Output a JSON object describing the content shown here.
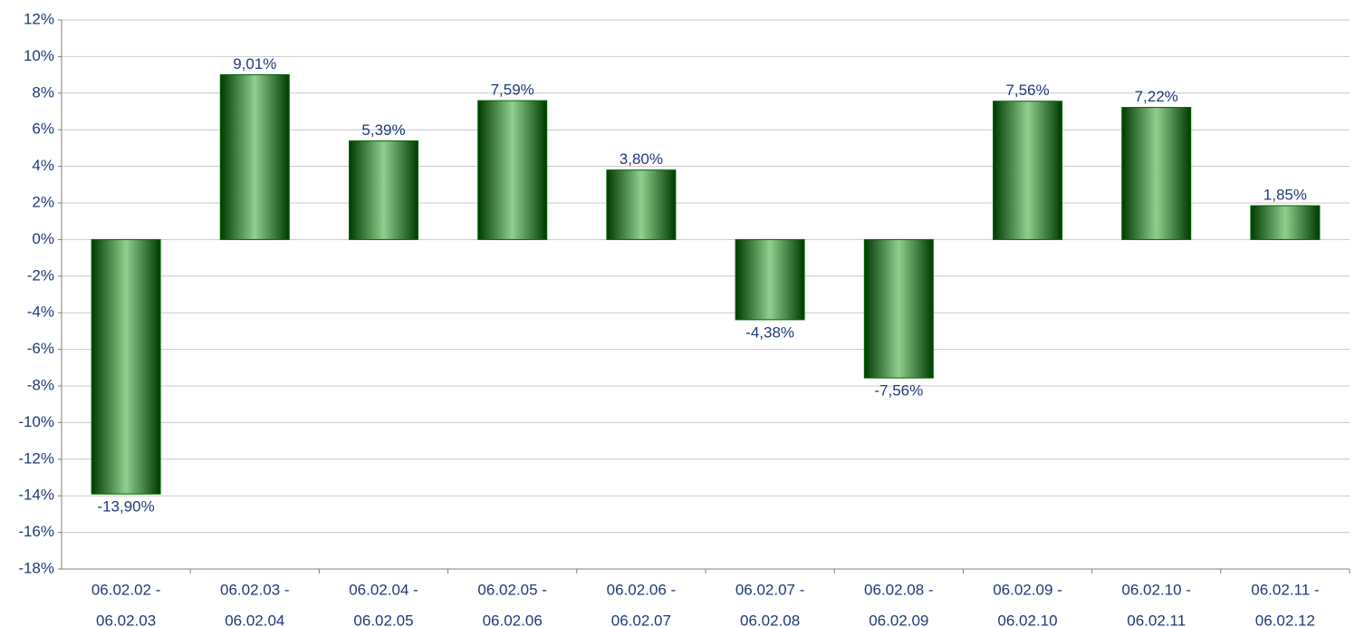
{
  "chart_data": {
    "type": "bar",
    "categories": [
      [
        "06.02.02 -",
        "06.02.03"
      ],
      [
        "06.02.03 -",
        "06.02.04"
      ],
      [
        "06.02.04 -",
        "06.02.05"
      ],
      [
        "06.02.05 -",
        "06.02.06"
      ],
      [
        "06.02.06 -",
        "06.02.07"
      ],
      [
        "06.02.07 -",
        "06.02.08"
      ],
      [
        "06.02.08 -",
        "06.02.09"
      ],
      [
        "06.02.09 -",
        "06.02.10"
      ],
      [
        "06.02.10 -",
        "06.02.11"
      ],
      [
        "06.02.11 -",
        "06.02.12"
      ]
    ],
    "values": [
      -13.9,
      9.01,
      5.39,
      7.59,
      3.8,
      -4.38,
      -7.56,
      7.56,
      7.22,
      1.85
    ],
    "value_labels": [
      "-13,90%",
      "9,01%",
      "5,39%",
      "7,59%",
      "3,80%",
      "-4,38%",
      "-7,56%",
      "7,56%",
      "7,22%",
      "1,85%"
    ],
    "color": "#006400",
    "ylim": [
      -18,
      12
    ],
    "yticks": [
      {
        "value": -18,
        "label": "-18%"
      },
      {
        "value": -16,
        "label": "-16%"
      },
      {
        "value": -14,
        "label": "-14%"
      },
      {
        "value": -12,
        "label": "-12%"
      },
      {
        "value": -10,
        "label": "-10%"
      },
      {
        "value": -8,
        "label": "-8%"
      },
      {
        "value": -6,
        "label": "-6%"
      },
      {
        "value": -4,
        "label": "-4%"
      },
      {
        "value": -2,
        "label": "-2%"
      },
      {
        "value": 0,
        "label": "0%"
      },
      {
        "value": 2,
        "label": "2%"
      },
      {
        "value": 4,
        "label": "4%"
      },
      {
        "value": 6,
        "label": "6%"
      },
      {
        "value": 8,
        "label": "8%"
      },
      {
        "value": 10,
        "label": "10%"
      },
      {
        "value": 12,
        "label": "12%"
      }
    ],
    "grid": true
  }
}
